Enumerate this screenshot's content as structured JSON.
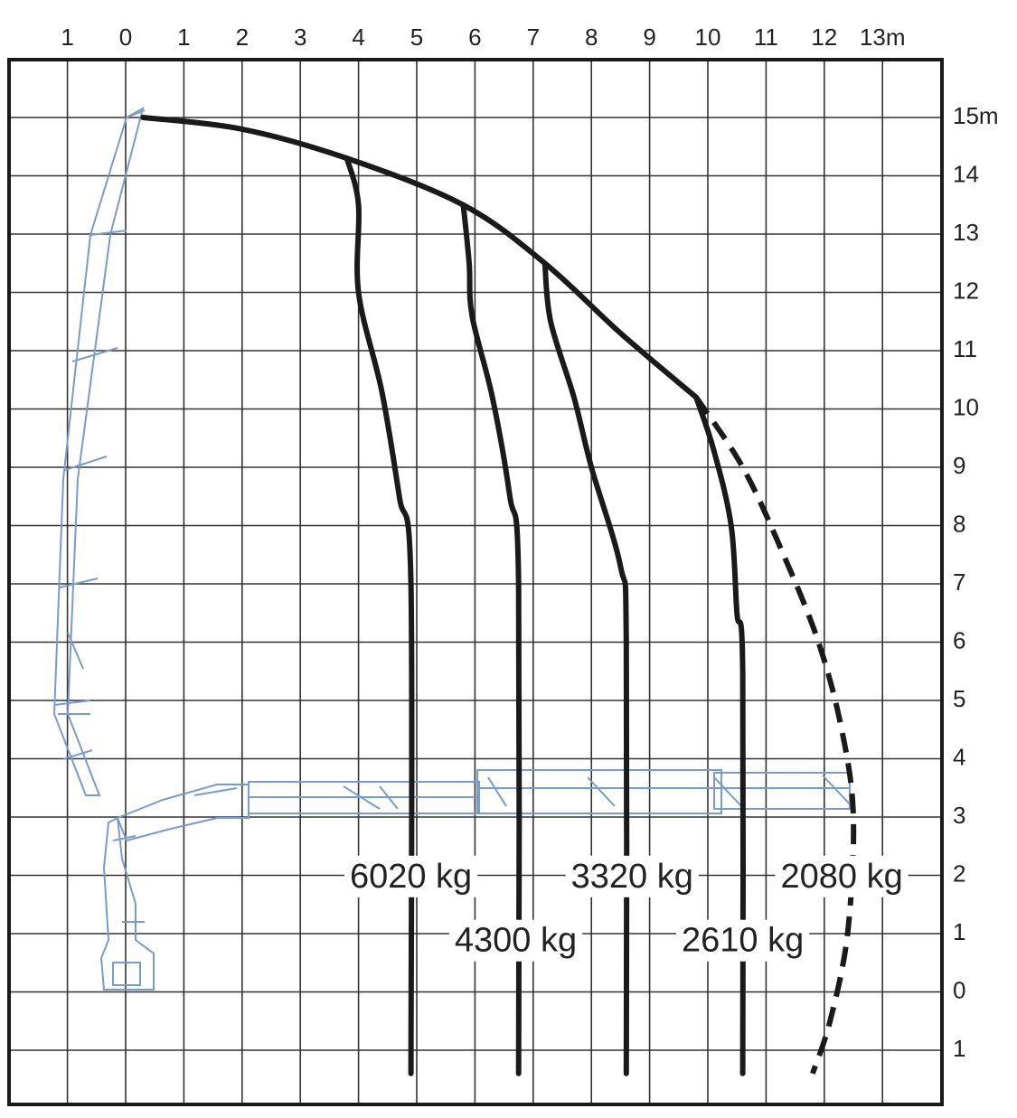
{
  "chart_data": {
    "type": "line",
    "title": "",
    "x_ticks": [
      "1",
      "0",
      "1",
      "2",
      "3",
      "4",
      "5",
      "6",
      "7",
      "8",
      "9",
      "10",
      "11",
      "12",
      "13m"
    ],
    "y_ticks": [
      "15m",
      "14",
      "13",
      "12",
      "11",
      "10",
      "9",
      "8",
      "7",
      "6",
      "5",
      "4",
      "3",
      "2",
      "1",
      "0",
      "1"
    ],
    "xlim": [
      -1,
      13
    ],
    "ylim": [
      -1,
      15
    ],
    "grid": true,
    "colors": {
      "curve": "#1a1a1a",
      "crane": "#7a9ccc",
      "grid": "#333333"
    },
    "envelope": {
      "style": "solid",
      "points": [
        [
          0.3,
          15.0
        ],
        [
          2.0,
          14.8
        ],
        [
          3.8,
          14.3
        ],
        [
          5.8,
          13.5
        ],
        [
          7.2,
          12.5
        ],
        [
          8.5,
          11.3
        ],
        [
          9.8,
          10.2
        ]
      ]
    },
    "extension": {
      "style": "dashed",
      "points": [
        [
          9.8,
          10.2
        ],
        [
          10.6,
          9.0
        ],
        [
          11.3,
          7.5
        ],
        [
          11.9,
          6.0
        ],
        [
          12.3,
          4.5
        ],
        [
          12.5,
          3.0
        ],
        [
          12.4,
          1.0
        ],
        [
          12.1,
          -0.5
        ],
        [
          11.8,
          -1.4
        ]
      ]
    },
    "series": [
      {
        "label": "6020 kg",
        "points": [
          [
            3.8,
            14.3
          ],
          [
            4.0,
            13.5
          ],
          [
            4.0,
            12.0
          ],
          [
            4.4,
            10.3
          ],
          [
            4.7,
            8.5
          ],
          [
            4.9,
            7.0
          ],
          [
            4.9,
            -1.4
          ]
        ],
        "label_at": [
          4.9,
          1.95
        ]
      },
      {
        "label": "4300 kg",
        "points": [
          [
            5.8,
            13.5
          ],
          [
            5.9,
            12.5
          ],
          [
            5.95,
            11.6
          ],
          [
            6.3,
            10.2
          ],
          [
            6.6,
            8.5
          ],
          [
            6.75,
            7.0
          ],
          [
            6.75,
            -1.4
          ]
        ],
        "label_at": [
          6.7,
          0.85
        ]
      },
      {
        "label": "3320 kg",
        "points": [
          [
            7.2,
            12.5
          ],
          [
            7.3,
            11.5
          ],
          [
            7.7,
            10.2
          ],
          [
            8.0,
            9.0
          ],
          [
            8.5,
            7.3
          ],
          [
            8.6,
            6.0
          ],
          [
            8.6,
            -1.4
          ]
        ],
        "label_at": [
          8.7,
          1.95
        ]
      },
      {
        "label": "2610 kg",
        "points": [
          [
            9.8,
            10.2
          ],
          [
            10.1,
            9.3
          ],
          [
            10.4,
            8.0
          ],
          [
            10.5,
            6.5
          ],
          [
            10.6,
            5.5
          ],
          [
            10.6,
            -1.4
          ]
        ],
        "label_at": [
          10.6,
          0.85
        ]
      }
    ],
    "extension_label": {
      "label": "2080 kg",
      "label_at": [
        12.3,
        1.95
      ]
    }
  }
}
